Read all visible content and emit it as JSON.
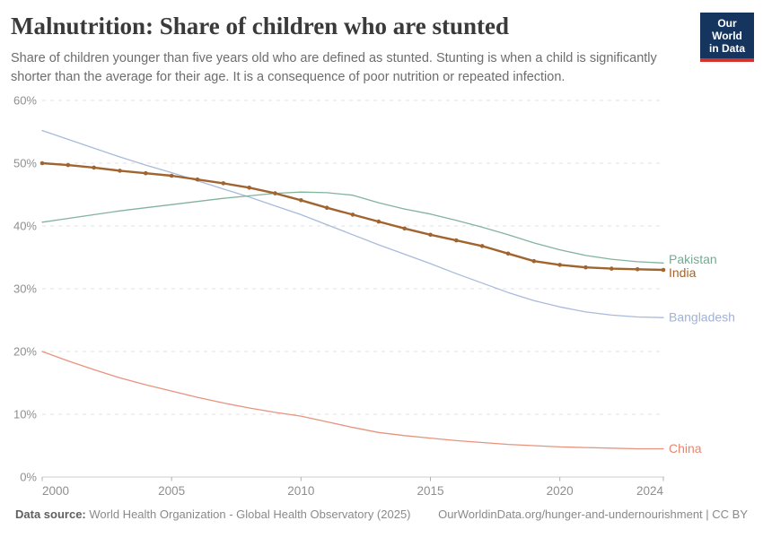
{
  "header": {
    "title": "Malnutrition: Share of children who are stunted",
    "subtitle": "Share of children younger than five years old who are defined as stunted. Stunting is when a child is significantly shorter than the average for their age. It is a consequence of poor nutrition or repeated infection."
  },
  "logo": {
    "line1": "Our World",
    "line2": "in Data",
    "bg_color": "#15355f",
    "accent_color": "#d0342c"
  },
  "chart_data": {
    "type": "line",
    "x": [
      2000,
      2001,
      2002,
      2003,
      2004,
      2005,
      2006,
      2007,
      2008,
      2009,
      2010,
      2011,
      2012,
      2013,
      2014,
      2015,
      2016,
      2017,
      2018,
      2019,
      2020,
      2021,
      2022,
      2023,
      2024
    ],
    "xlim": [
      2000,
      2024
    ],
    "ylim": [
      0,
      60
    ],
    "yticks": [
      0,
      10,
      20,
      30,
      40,
      50,
      60
    ],
    "xticks": [
      2000,
      2005,
      2010,
      2015,
      2020,
      2024
    ],
    "unit": "%",
    "grid": "dashed-horizontal",
    "legend_position": "end-of-line-labels",
    "series": [
      {
        "name": "Bangladesh",
        "color": "#a0b3d6",
        "values": [
          55.2,
          53.8,
          52.4,
          51.0,
          49.7,
          48.5,
          47.2,
          45.9,
          44.6,
          43.2,
          41.8,
          40.2,
          38.6,
          37.0,
          35.5,
          34.0,
          32.4,
          30.9,
          29.4,
          28.1,
          27.1,
          26.3,
          25.8,
          25.5,
          25.4
        ],
        "markers": false
      },
      {
        "name": "Pakistan",
        "color": "#74ab92",
        "values": [
          40.6,
          41.2,
          41.8,
          42.4,
          42.9,
          43.4,
          43.9,
          44.4,
          44.8,
          45.2,
          45.4,
          45.3,
          44.9,
          43.7,
          42.7,
          41.9,
          40.9,
          39.8,
          38.6,
          37.3,
          36.2,
          35.3,
          34.7,
          34.3,
          34.1
        ],
        "markers": false
      },
      {
        "name": "China",
        "color": "#e5876f",
        "values": [
          20.0,
          18.5,
          17.1,
          15.8,
          14.7,
          13.7,
          12.7,
          11.8,
          11.0,
          10.3,
          9.7,
          8.8,
          7.9,
          7.1,
          6.6,
          6.2,
          5.8,
          5.5,
          5.2,
          5.0,
          4.8,
          4.7,
          4.6,
          4.5,
          4.5
        ],
        "markers": false
      },
      {
        "name": "India",
        "color": "#a1642e",
        "values": [
          50.0,
          49.7,
          49.3,
          48.8,
          48.4,
          48.0,
          47.4,
          46.8,
          46.1,
          45.2,
          44.1,
          42.9,
          41.8,
          40.7,
          39.6,
          38.6,
          37.7,
          36.8,
          35.6,
          34.4,
          33.8,
          33.4,
          33.2,
          33.1,
          33.0
        ],
        "markers": true
      }
    ],
    "axis_text_color": "#8f8f8f",
    "gridline_color": "#e2e2e2",
    "axisline_color": "#cccccc"
  },
  "footer": {
    "source_label": "Data source:",
    "source_text": " World Health Organization - Global Health Observatory (2025)",
    "right_text": "OurWorldinData.org/hunger-and-undernourishment | CC BY"
  }
}
